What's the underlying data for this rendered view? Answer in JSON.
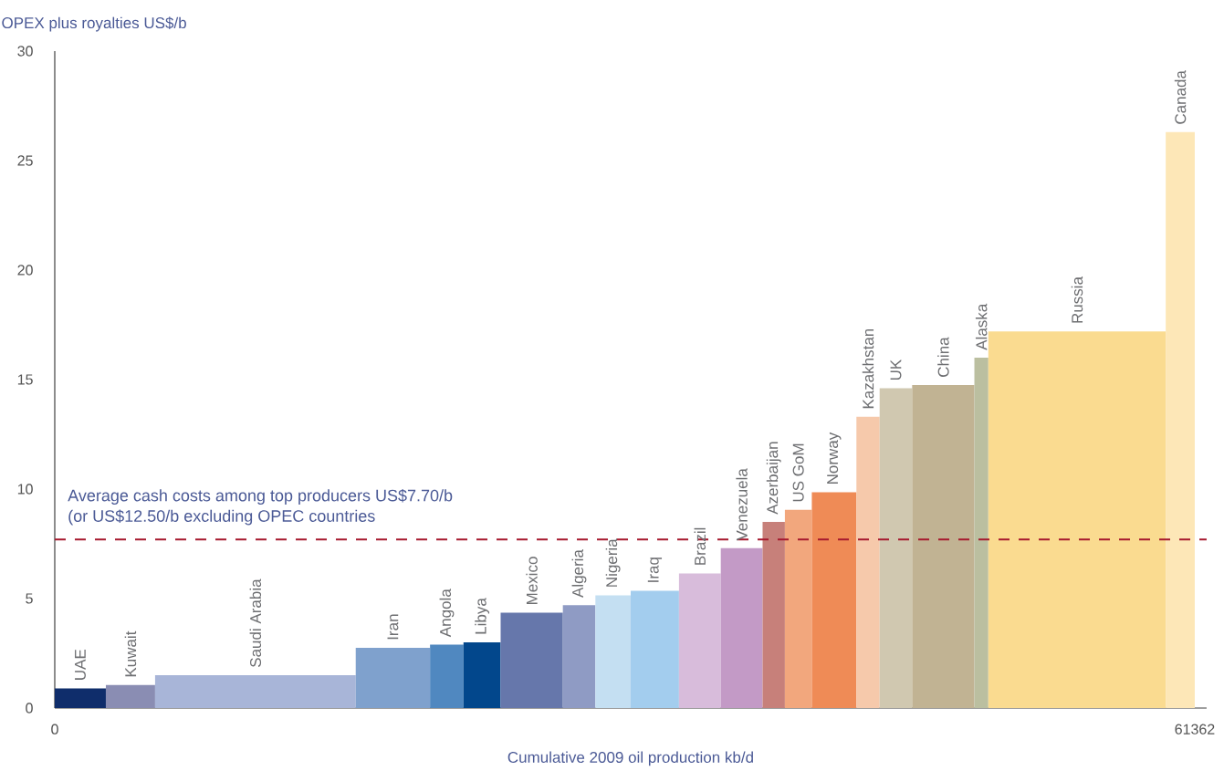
{
  "chart_data": {
    "type": "histogram",
    "xlabel": "Cumulative 2009 oil production kb/d",
    "ylabel": "OPEX plus royalties US$/b",
    "bins": [
      0,
      2750,
      5400,
      16200,
      20200,
      22000,
      24000,
      27350,
      29100,
      31000,
      33600,
      35850,
      38100,
      39300,
      40750,
      43150,
      44400,
      46150,
      49500,
      50250,
      59800,
      61362
    ],
    "values": [
      0.9,
      1.05,
      1.5,
      2.75,
      2.9,
      3.0,
      4.35,
      4.7,
      5.15,
      5.35,
      6.15,
      7.3,
      8.5,
      9.05,
      9.85,
      13.3,
      14.6,
      14.75,
      16.0,
      17.2,
      26.3
    ],
    "colors": [
      "#0f2d6b",
      "#8a8db3",
      "#a8b5d8",
      "#7fa1cd",
      "#5088c0",
      "#02478c",
      "#6677ab",
      "#8f9bc4",
      "#c4dff2",
      "#a3cdee",
      "#d8bcdb",
      "#c39ac6",
      "#c7807a",
      "#f2a77d",
      "#ef8b56",
      "#f6c9ab",
      "#d0c8b0",
      "#c1b393",
      "#bbbfa0",
      "#fadb90",
      "#fde7b7"
    ],
    "xlim": [
      0,
      62000
    ],
    "xticks": [
      0,
      61362
    ],
    "ylim": [
      0,
      30
    ],
    "yticks": [
      0,
      5,
      10,
      15,
      20,
      25,
      30
    ],
    "grid": false,
    "ref_lines": [
      {
        "axis": "y",
        "value": 7.7,
        "label": "Average cash costs among top producers US$7.70/b",
        "color": "#a6192e",
        "line_style": "dashed"
      }
    ],
    "annotations": [
      "(or US$12.50/b excluding OPEC countries",
      {
        "text": "UAE",
        "x": 1375,
        "y": 0.9
      },
      {
        "text": "Kuwait",
        "x": 4075,
        "y": 1.05
      },
      {
        "text": "Saudi Arabia",
        "x": 10800,
        "y": 1.5
      },
      {
        "text": "Iran",
        "x": 18200,
        "y": 2.75
      },
      {
        "text": "Angola",
        "x": 21100,
        "y": 2.9
      },
      {
        "text": "Libya",
        "x": 23000,
        "y": 3.0
      },
      {
        "text": "Mexico",
        "x": 25675,
        "y": 4.35
      },
      {
        "text": "Algeria",
        "x": 28225,
        "y": 4.7
      },
      {
        "text": "Nigeria",
        "x": 30050,
        "y": 5.15
      },
      {
        "text": "Iraq",
        "x": 32300,
        "y": 5.35
      },
      {
        "text": "Brazil",
        "x": 34725,
        "y": 6.15
      },
      {
        "text": "Venezuela",
        "x": 36975,
        "y": 7.3
      },
      {
        "text": "Azerbaijan",
        "x": 38700,
        "y": 8.5
      },
      {
        "text": "US GoM",
        "x": 40025,
        "y": 9.05
      },
      {
        "text": "Norway",
        "x": 41950,
        "y": 9.85
      },
      {
        "text": "Kazakhstan",
        "x": 43775,
        "y": 13.3
      },
      {
        "text": "UK",
        "x": 45275,
        "y": 14.6
      },
      {
        "text": "China",
        "x": 47825,
        "y": 14.75
      },
      {
        "text": "Alaska",
        "x": 49875,
        "y": 16.0
      },
      {
        "text": "Russia",
        "x": 55025,
        "y": 17.2
      },
      {
        "text": "Canada",
        "x": 60581,
        "y": 26.3
      }
    ]
  }
}
